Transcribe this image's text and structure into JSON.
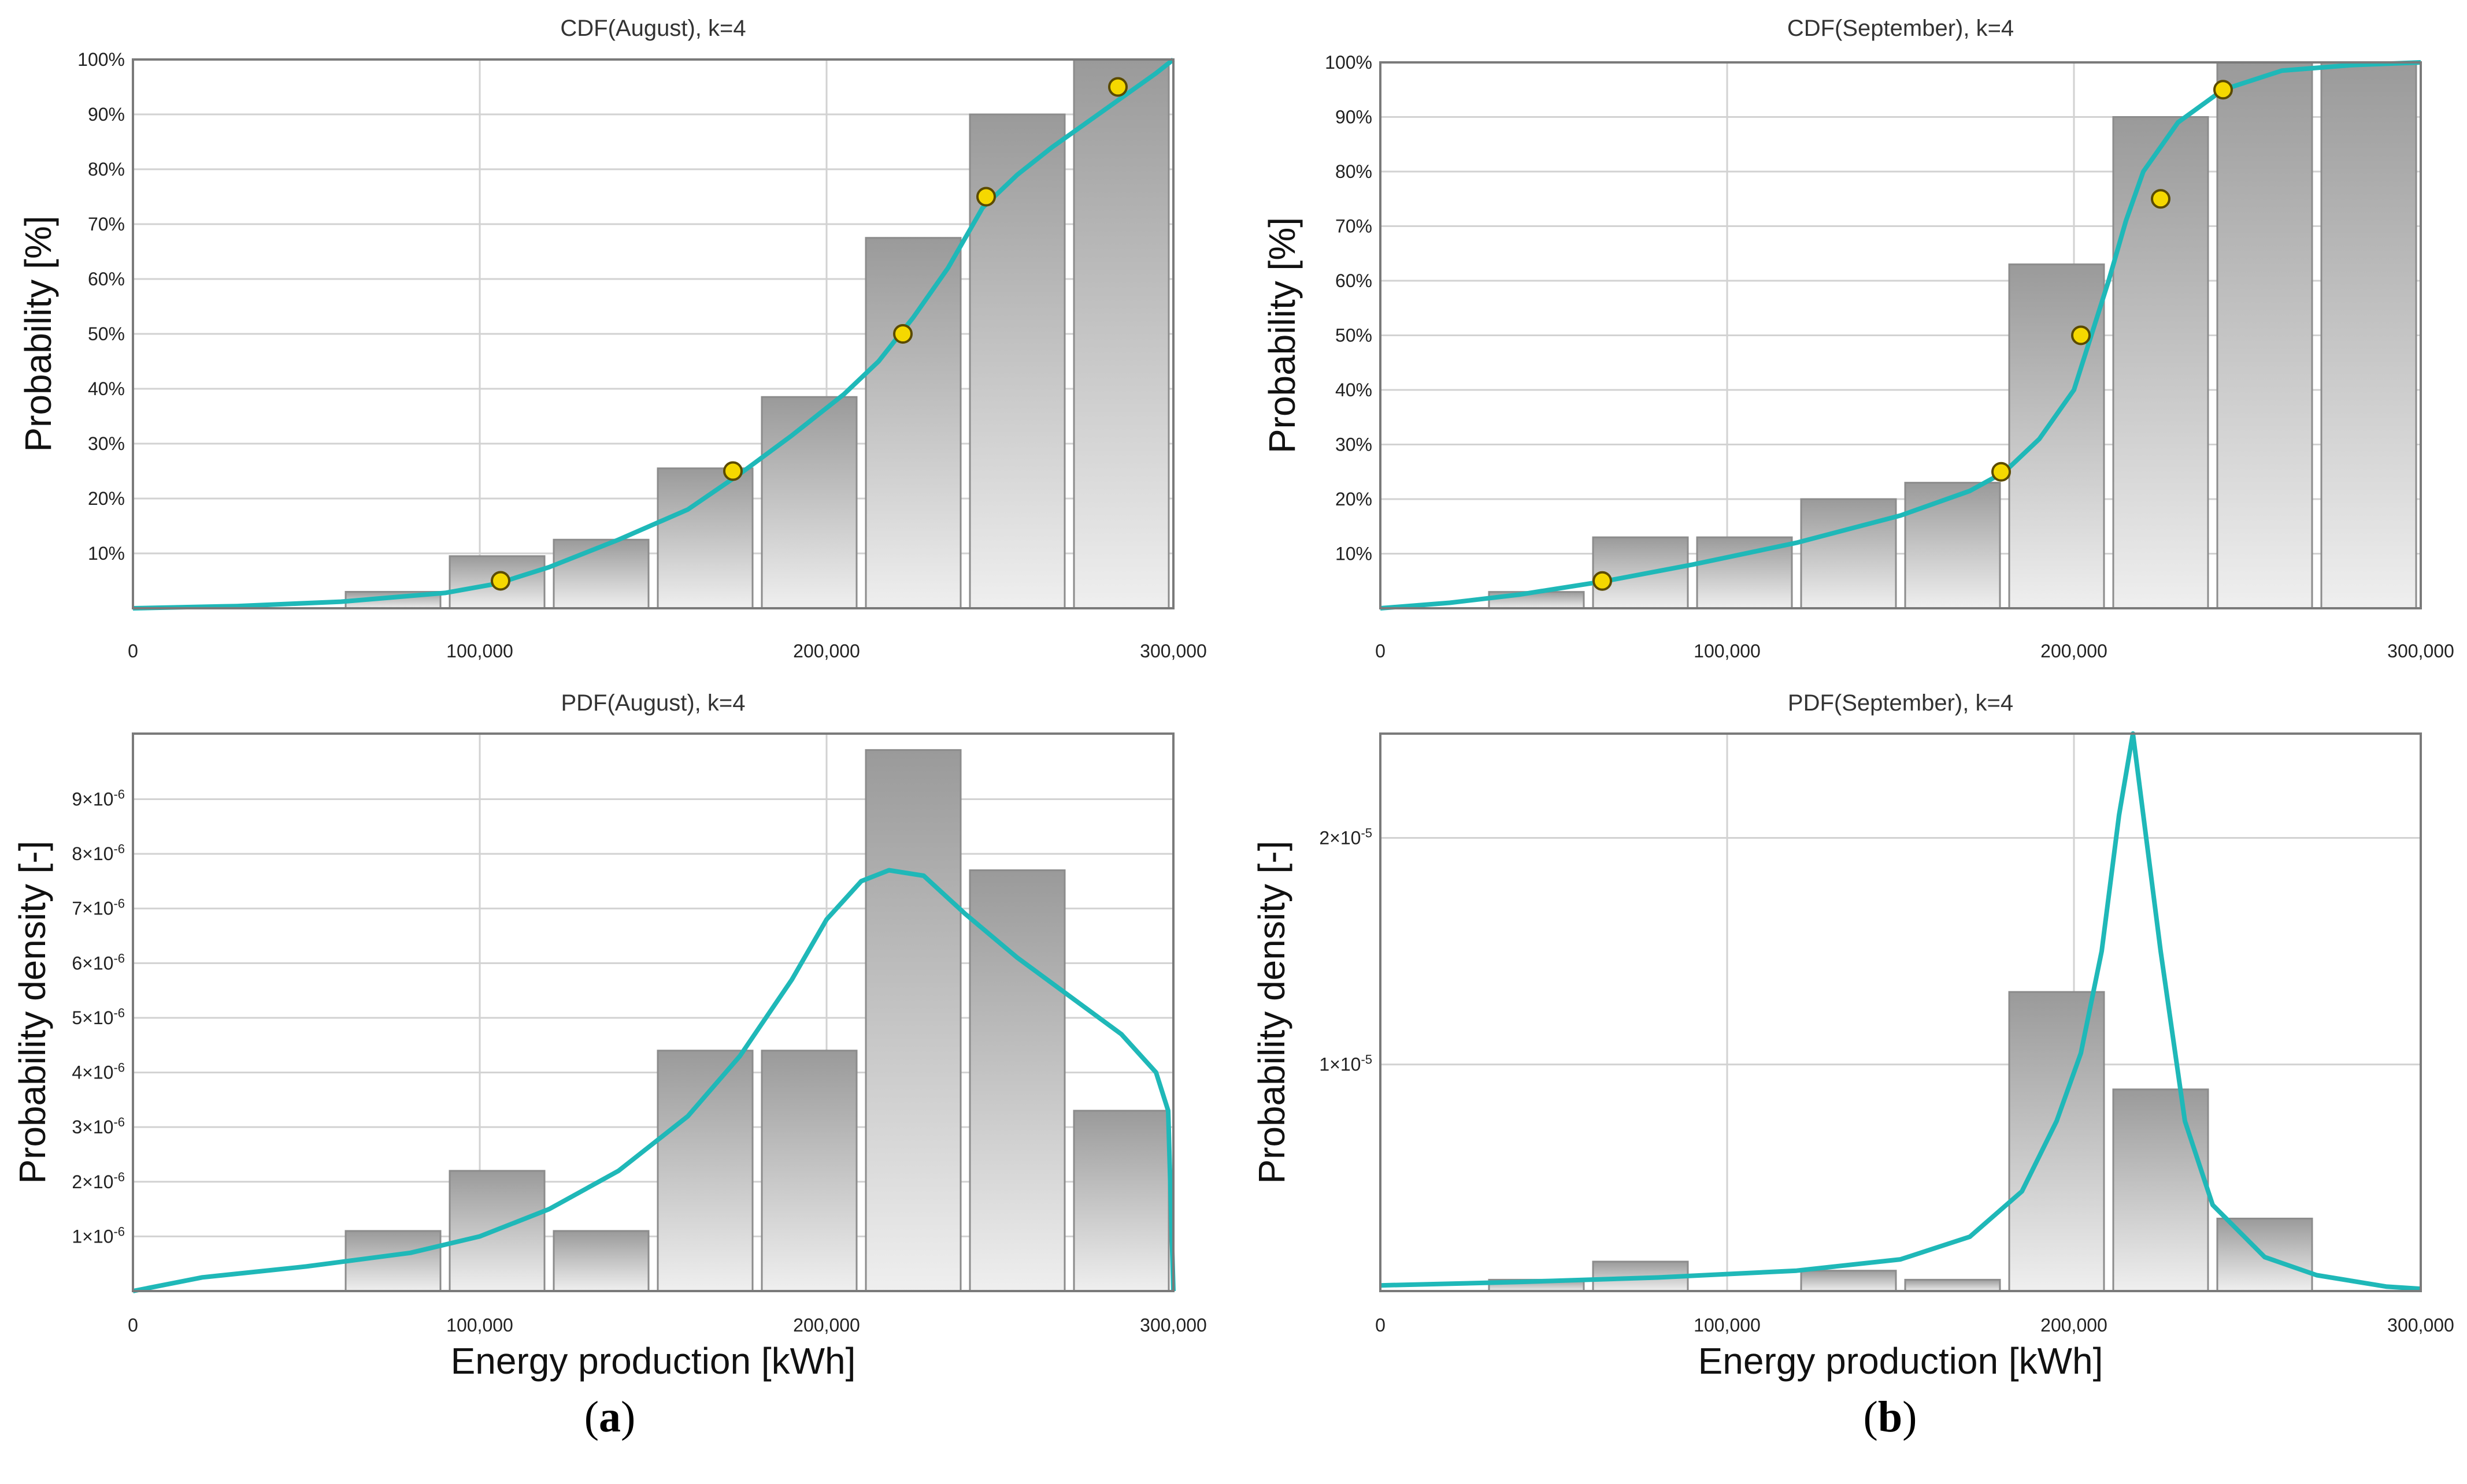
{
  "captions": {
    "a": "a",
    "b": "b",
    "open": "(",
    "close": ")"
  },
  "colors": {
    "curve": "#1fb8b8",
    "marker": "#f5d800",
    "markerStroke": "#5a4a00",
    "barDark": "#9a9a9a",
    "barLight": "#efefef",
    "grid": "#d2d2d2",
    "frame": "#7a7a7a"
  },
  "chart_data": [
    {
      "id": "cdf-august",
      "type": "bar",
      "title": "CDF(August), k=4",
      "xlabel": "",
      "ylabel": "Probability [%]",
      "xlim": [
        0,
        300000
      ],
      "ylim": [
        0,
        100
      ],
      "x_ticks": [
        0,
        100000,
        200000,
        300000
      ],
      "x_tick_labels": [
        "0",
        "100,000",
        "200,000",
        "300,000"
      ],
      "y_ticks": [
        10,
        20,
        30,
        40,
        50,
        60,
        70,
        80,
        90,
        100
      ],
      "y_tick_labels": [
        "10%",
        "20%",
        "30%",
        "40%",
        "50%",
        "60%",
        "70%",
        "80%",
        "90%",
        "100%"
      ],
      "bars": [
        {
          "x0": 0,
          "x1": 30000,
          "value": 0
        },
        {
          "x0": 30000,
          "x1": 60000,
          "value": 0
        },
        {
          "x0": 60000,
          "x1": 90000,
          "value": 3
        },
        {
          "x0": 90000,
          "x1": 120000,
          "value": 9.5
        },
        {
          "x0": 120000,
          "x1": 150000,
          "value": 12.5
        },
        {
          "x0": 150000,
          "x1": 180000,
          "value": 25.5
        },
        {
          "x0": 180000,
          "x1": 210000,
          "value": 38.5
        },
        {
          "x0": 210000,
          "x1": 240000,
          "value": 67.5
        },
        {
          "x0": 240000,
          "x1": 270000,
          "value": 90
        },
        {
          "x0": 270000,
          "x1": 300000,
          "value": 100
        }
      ],
      "curve": [
        [
          0,
          0
        ],
        [
          30000,
          0.4
        ],
        [
          60000,
          1.2
        ],
        [
          90000,
          2.8
        ],
        [
          105000,
          4.5
        ],
        [
          120000,
          7.5
        ],
        [
          140000,
          12.5
        ],
        [
          160000,
          18
        ],
        [
          175000,
          24.5
        ],
        [
          190000,
          31.5
        ],
        [
          205000,
          39
        ],
        [
          215000,
          45
        ],
        [
          225000,
          53
        ],
        [
          235000,
          62
        ],
        [
          245000,
          73
        ],
        [
          255000,
          79
        ],
        [
          265000,
          84
        ],
        [
          275000,
          88.5
        ],
        [
          285000,
          93
        ],
        [
          295000,
          97.5
        ],
        [
          300000,
          100
        ]
      ],
      "markers": [
        [
          106000,
          5
        ],
        [
          173000,
          25
        ],
        [
          222000,
          50
        ],
        [
          246000,
          75
        ],
        [
          284000,
          95
        ]
      ]
    },
    {
      "id": "cdf-september",
      "type": "bar",
      "title": "CDF(September), k=4",
      "xlabel": "",
      "ylabel": "Probability [%]",
      "xlim": [
        0,
        300000
      ],
      "ylim": [
        0,
        100
      ],
      "x_ticks": [
        0,
        100000,
        200000,
        300000
      ],
      "x_tick_labels": [
        "0",
        "100,000",
        "200,000",
        "300,000"
      ],
      "y_ticks": [
        10,
        20,
        30,
        40,
        50,
        60,
        70,
        80,
        90,
        100
      ],
      "y_tick_labels": [
        "10%",
        "20%",
        "30%",
        "40%",
        "50%",
        "60%",
        "70%",
        "80%",
        "90%",
        "100%"
      ],
      "bars": [
        {
          "x0": 0,
          "x1": 30000,
          "value": 0
        },
        {
          "x0": 30000,
          "x1": 60000,
          "value": 3
        },
        {
          "x0": 60000,
          "x1": 90000,
          "value": 13
        },
        {
          "x0": 90000,
          "x1": 120000,
          "value": 13
        },
        {
          "x0": 120000,
          "x1": 150000,
          "value": 20
        },
        {
          "x0": 150000,
          "x1": 180000,
          "value": 23
        },
        {
          "x0": 180000,
          "x1": 210000,
          "value": 63
        },
        {
          "x0": 210000,
          "x1": 240000,
          "value": 90
        },
        {
          "x0": 240000,
          "x1": 270000,
          "value": 100
        },
        {
          "x0": 270000,
          "x1": 300000,
          "value": 100
        }
      ],
      "curve": [
        [
          0,
          0
        ],
        [
          20000,
          1
        ],
        [
          40000,
          2.5
        ],
        [
          65000,
          5
        ],
        [
          90000,
          8
        ],
        [
          120000,
          12
        ],
        [
          150000,
          17
        ],
        [
          170000,
          21.5
        ],
        [
          180000,
          25
        ],
        [
          190000,
          31
        ],
        [
          200000,
          40
        ],
        [
          205000,
          50
        ],
        [
          210000,
          60
        ],
        [
          215000,
          71
        ],
        [
          220000,
          80
        ],
        [
          230000,
          89
        ],
        [
          243000,
          95
        ],
        [
          260000,
          98.5
        ],
        [
          280000,
          99.5
        ],
        [
          300000,
          100
        ]
      ],
      "markers": [
        [
          64000,
          5
        ],
        [
          179000,
          25
        ],
        [
          202000,
          50
        ],
        [
          225000,
          75
        ],
        [
          243000,
          95
        ]
      ]
    },
    {
      "id": "pdf-august",
      "type": "bar",
      "title": "PDF(August), k=4",
      "xlabel": "Energy production [kWh]",
      "ylabel": "Probability density [-]",
      "xlim": [
        0,
        300000
      ],
      "ylim": [
        0,
        1.02e-05
      ],
      "x_ticks": [
        0,
        100000,
        200000,
        300000
      ],
      "x_tick_labels": [
        "0",
        "100,000",
        "200,000",
        "300,000"
      ],
      "y_ticks": [
        1e-06,
        2e-06,
        3e-06,
        4e-06,
        5e-06,
        6e-06,
        7e-06,
        8e-06,
        9e-06
      ],
      "y_tick_labels": [
        {
          "mantissa": "1×10",
          "exponent": "-6"
        },
        {
          "mantissa": "2×10",
          "exponent": "-6"
        },
        {
          "mantissa": "3×10",
          "exponent": "-6"
        },
        {
          "mantissa": "4×10",
          "exponent": "-6"
        },
        {
          "mantissa": "5×10",
          "exponent": "-6"
        },
        {
          "mantissa": "6×10",
          "exponent": "-6"
        },
        {
          "mantissa": "7×10",
          "exponent": "-6"
        },
        {
          "mantissa": "8×10",
          "exponent": "-6"
        },
        {
          "mantissa": "9×10",
          "exponent": "-6"
        }
      ],
      "bars": [
        {
          "x0": 0,
          "x1": 30000,
          "value": 0
        },
        {
          "x0": 30000,
          "x1": 60000,
          "value": 0
        },
        {
          "x0": 60000,
          "x1": 90000,
          "value": 1.1e-06
        },
        {
          "x0": 90000,
          "x1": 120000,
          "value": 2.2e-06
        },
        {
          "x0": 120000,
          "x1": 150000,
          "value": 1.1e-06
        },
        {
          "x0": 150000,
          "x1": 180000,
          "value": 4.4e-06
        },
        {
          "x0": 180000,
          "x1": 210000,
          "value": 4.4e-06
        },
        {
          "x0": 210000,
          "x1": 240000,
          "value": 9.9e-06
        },
        {
          "x0": 240000,
          "x1": 270000,
          "value": 7.7e-06
        },
        {
          "x0": 270000,
          "x1": 300000,
          "value": 3.3e-06
        }
      ],
      "curve": [
        [
          0,
          0
        ],
        [
          20000,
          2.5e-07
        ],
        [
          50000,
          4.5e-07
        ],
        [
          80000,
          7e-07
        ],
        [
          100000,
          1e-06
        ],
        [
          120000,
          1.5e-06
        ],
        [
          140000,
          2.2e-06
        ],
        [
          160000,
          3.2e-06
        ],
        [
          175000,
          4.3e-06
        ],
        [
          190000,
          5.7e-06
        ],
        [
          200000,
          6.8e-06
        ],
        [
          210000,
          7.5e-06
        ],
        [
          218000,
          7.7e-06
        ],
        [
          228000,
          7.6e-06
        ],
        [
          240000,
          6.9e-06
        ],
        [
          255000,
          6.1e-06
        ],
        [
          270000,
          5.4e-06
        ],
        [
          285000,
          4.7e-06
        ],
        [
          295000,
          4e-06
        ],
        [
          298500,
          3.3e-06
        ],
        [
          300000,
          0
        ]
      ]
    },
    {
      "id": "pdf-september",
      "type": "bar",
      "title": "PDF(September), k=4",
      "xlabel": "Energy production [kWh]",
      "ylabel": "Probability density [-]",
      "xlim": [
        0,
        300000
      ],
      "ylim": [
        0,
        2.46e-05
      ],
      "x_ticks": [
        0,
        100000,
        200000,
        300000
      ],
      "x_tick_labels": [
        "0",
        "100,000",
        "200,000",
        "300,000"
      ],
      "y_ticks": [
        1e-05,
        2e-05
      ],
      "y_tick_labels": [
        {
          "mantissa": "1×10",
          "exponent": "-5"
        },
        {
          "mantissa": "2×10",
          "exponent": "-5"
        }
      ],
      "bars": [
        {
          "x0": 0,
          "x1": 30000,
          "value": 0
        },
        {
          "x0": 30000,
          "x1": 60000,
          "value": 5e-07
        },
        {
          "x0": 60000,
          "x1": 90000,
          "value": 1.3e-06
        },
        {
          "x0": 90000,
          "x1": 120000,
          "value": 0
        },
        {
          "x0": 120000,
          "x1": 150000,
          "value": 9e-07
        },
        {
          "x0": 150000,
          "x1": 180000,
          "value": 5e-07
        },
        {
          "x0": 180000,
          "x1": 210000,
          "value": 1.32e-05
        },
        {
          "x0": 210000,
          "x1": 240000,
          "value": 8.9e-06
        },
        {
          "x0": 240000,
          "x1": 270000,
          "value": 3.2e-06
        },
        {
          "x0": 270000,
          "x1": 300000,
          "value": 0
        }
      ],
      "curve": [
        [
          0,
          2.5e-07
        ],
        [
          40000,
          4e-07
        ],
        [
          80000,
          6e-07
        ],
        [
          120000,
          9e-07
        ],
        [
          150000,
          1.4e-06
        ],
        [
          170000,
          2.4e-06
        ],
        [
          185000,
          4.4e-06
        ],
        [
          195000,
          7.5e-06
        ],
        [
          202000,
          1.05e-05
        ],
        [
          208000,
          1.5e-05
        ],
        [
          213000,
          2.1e-05
        ],
        [
          217000,
          2.46e-05
        ],
        [
          220000,
          2.1e-05
        ],
        [
          225000,
          1.5e-05
        ],
        [
          232000,
          7.5e-06
        ],
        [
          240000,
          3.8e-06
        ],
        [
          255000,
          1.5e-06
        ],
        [
          270000,
          7e-07
        ],
        [
          290000,
          2e-07
        ],
        [
          300000,
          1e-07
        ]
      ]
    }
  ]
}
